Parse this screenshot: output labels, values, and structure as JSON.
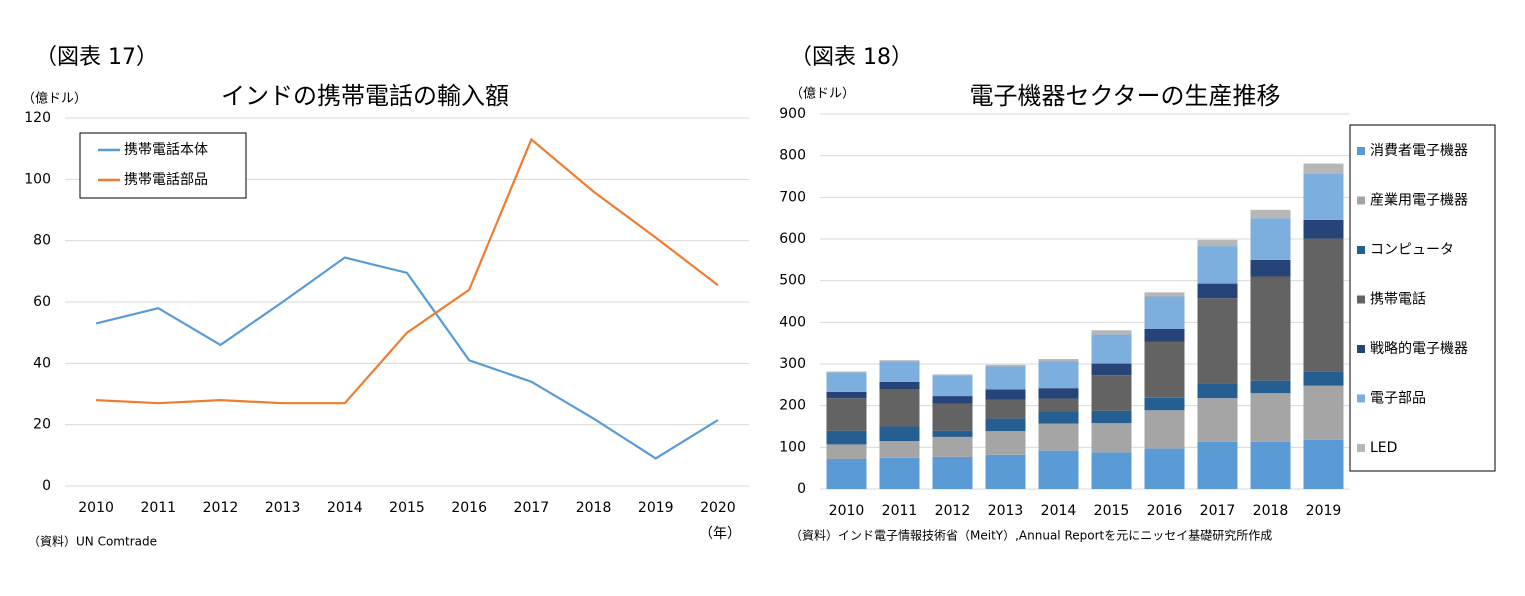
{
  "chart_data": [
    {
      "type": "line",
      "figure_label": "（図表 17）",
      "title": "インドの携帯電話の輸入額",
      "y_unit": "（億ドル）",
      "x_unit": "（年）",
      "source": "（資料）UN Comtrade",
      "categories": [
        "2010",
        "2011",
        "2012",
        "2013",
        "2014",
        "2015",
        "2016",
        "2017",
        "2018",
        "2019",
        "2020"
      ],
      "series": [
        {
          "name": "携帯電話本体",
          "color": "#5b9bd5",
          "values": [
            53,
            58,
            46,
            60,
            74.5,
            69.5,
            41,
            34,
            22,
            9,
            21.5
          ]
        },
        {
          "name": "携帯電話部品",
          "color": "#ed7d31",
          "values": [
            28,
            27,
            28,
            27,
            27,
            50,
            64,
            113,
            96,
            81,
            65.5
          ]
        }
      ],
      "ylim": [
        0,
        120
      ],
      "yticks": [
        0,
        20,
        40,
        60,
        80,
        100,
        120
      ],
      "grid": true,
      "legend": "upper-left"
    },
    {
      "type": "stacked-bar",
      "figure_label": "（図表 18）",
      "title": "電子機器セクターの生産推移",
      "y_unit": "（億ドル）",
      "source": "（資料）インド電子情報技術省（MeitY）,Annual Reportを元にニッセイ基礎研究所作成",
      "categories": [
        "2010",
        "2011",
        "2012",
        "2013",
        "2014",
        "2015",
        "2016",
        "2017",
        "2018",
        "2019"
      ],
      "series": [
        {
          "name": "消費者電子機器",
          "color": "#5b9bd5",
          "values": [
            72,
            75,
            77,
            82,
            92,
            88,
            97,
            113,
            113,
            118
          ]
        },
        {
          "name": "産業用電子機器",
          "color": "#a5a5a5",
          "values": [
            35,
            40,
            48,
            57,
            65,
            70,
            92,
            105,
            117,
            130
          ]
        },
        {
          "name": "コンピュータ",
          "color": "#255e91",
          "values": [
            33,
            35,
            15,
            30,
            30,
            30,
            30,
            35,
            30,
            33
          ]
        },
        {
          "name": "携帯電話",
          "color": "#636363",
          "values": [
            78,
            90,
            65,
            45,
            30,
            85,
            135,
            205,
            250,
            320
          ]
        },
        {
          "name": "戦略的電子機器",
          "color": "#264478",
          "values": [
            15,
            17,
            18,
            25,
            25,
            28,
            30,
            35,
            40,
            45
          ]
        },
        {
          "name": "電子部品",
          "color": "#7cafdd",
          "values": [
            47,
            50,
            50,
            55,
            65,
            70,
            78,
            90,
            100,
            110
          ]
        },
        {
          "name": "LED",
          "color": "#b7b7b7",
          "values": [
            2,
            2,
            2,
            4,
            5,
            10,
            10,
            15,
            20,
            25
          ]
        }
      ],
      "ylim": [
        0,
        900
      ],
      "yticks": [
        0,
        100,
        200,
        300,
        400,
        500,
        600,
        700,
        800,
        900
      ],
      "grid": true,
      "legend": "right"
    }
  ]
}
